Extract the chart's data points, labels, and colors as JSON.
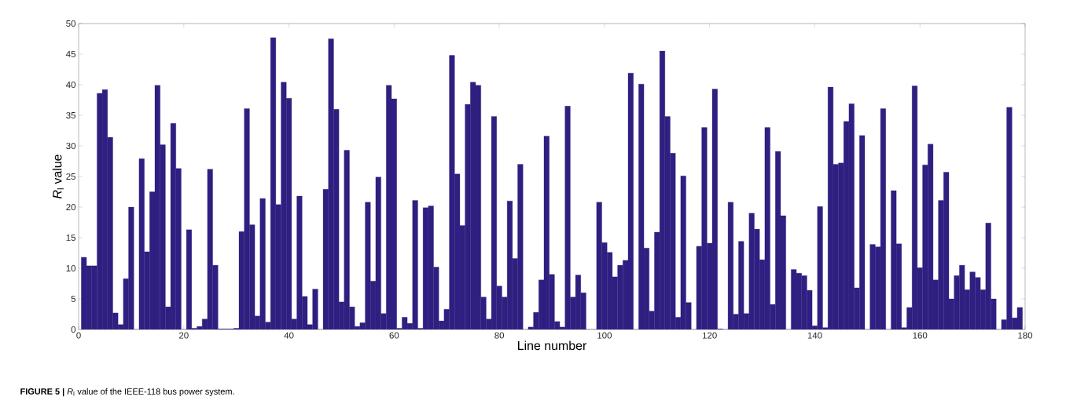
{
  "chart_data": {
    "type": "bar",
    "xlabel": "Line number",
    "ylabel": "*R*$_{l}$ value",
    "annotations": [
      "**FIGURE 5 |** *R*$_{l}$ value of the IEEE-118 bus power system."
    ],
    "x": [
      1,
      2,
      3,
      4,
      5,
      6,
      7,
      8,
      9,
      10,
      11,
      12,
      13,
      14,
      15,
      16,
      17,
      18,
      19,
      20,
      21,
      22,
      23,
      24,
      25,
      26,
      27,
      28,
      29,
      30,
      31,
      32,
      33,
      34,
      35,
      36,
      37,
      38,
      39,
      40,
      41,
      42,
      43,
      44,
      45,
      46,
      47,
      48,
      49,
      50,
      51,
      52,
      53,
      54,
      55,
      56,
      57,
      58,
      59,
      60,
      61,
      62,
      63,
      64,
      65,
      66,
      67,
      68,
      69,
      70,
      71,
      72,
      73,
      74,
      75,
      76,
      77,
      78,
      79,
      80,
      81,
      82,
      83,
      84,
      85,
      86,
      87,
      88,
      89,
      90,
      91,
      92,
      93,
      94,
      95,
      96,
      97,
      98,
      99,
      100,
      101,
      102,
      103,
      104,
      105,
      106,
      107,
      108,
      109,
      110,
      111,
      112,
      113,
      114,
      115,
      116,
      117,
      118,
      119,
      120,
      121,
      122,
      123,
      124,
      125,
      126,
      127,
      128,
      129,
      130,
      131,
      132,
      133,
      134,
      135,
      136,
      137,
      138,
      139,
      140,
      141,
      142,
      143,
      144,
      145,
      146,
      147,
      148,
      149,
      150,
      151,
      152,
      153,
      154,
      155,
      156,
      157,
      158,
      159,
      160,
      161,
      162,
      163,
      164,
      165,
      166,
      167,
      168,
      169,
      170,
      171,
      172,
      173,
      174,
      175,
      176,
      177,
      178,
      179
    ],
    "values": [
      11.8,
      10.4,
      10.4,
      38.6,
      39.2,
      31.4,
      2.7,
      0.8,
      8.3,
      20.0,
      0,
      27.9,
      12.7,
      22.5,
      39.9,
      30.2,
      3.7,
      33.7,
      26.3,
      0,
      16.3,
      0.2,
      0.5,
      1.7,
      26.2,
      10.5,
      0.1,
      0.1,
      0.1,
      0.2,
      16.0,
      36.1,
      17.1,
      2.2,
      21.4,
      1.2,
      47.7,
      20.4,
      40.4,
      37.8,
      1.7,
      21.8,
      5.4,
      0.8,
      6.6,
      0,
      22.9,
      47.5,
      36.0,
      4.5,
      29.3,
      3.7,
      0.5,
      1.1,
      20.8,
      7.9,
      24.9,
      2.6,
      39.9,
      37.7,
      0.2,
      2.0,
      1.0,
      21.1,
      0.2,
      19.9,
      20.2,
      10.2,
      1.4,
      3.3,
      44.8,
      25.4,
      17.0,
      36.8,
      40.4,
      39.9,
      5.3,
      1.7,
      34.8,
      7.1,
      5.3,
      21.0,
      11.6,
      27.0,
      0,
      0.4,
      2.8,
      8.1,
      31.6,
      9.0,
      1.3,
      0.4,
      36.5,
      5.3,
      8.9,
      6.0,
      0,
      0,
      20.8,
      14.2,
      12.6,
      8.6,
      10.5,
      11.3,
      41.9,
      0,
      40.1,
      13.3,
      3.0,
      15.9,
      45.5,
      34.8,
      28.8,
      2.0,
      25.1,
      4.4,
      0,
      13.6,
      33.0,
      14.1,
      39.3,
      0.1,
      0,
      20.8,
      2.5,
      14.4,
      2.6,
      19.0,
      16.4,
      11.4,
      33.0,
      4.1,
      29.1,
      18.6,
      0,
      9.8,
      9.2,
      8.8,
      6.4,
      0.6,
      20.1,
      0.3,
      39.6,
      27.0,
      27.2,
      34.0,
      36.9,
      6.8,
      31.7,
      0,
      13.9,
      13.5,
      36.1,
      0,
      22.7,
      14.0,
      0.3,
      3.6,
      39.8,
      10.1,
      26.9,
      30.3,
      8.1,
      21.1,
      25.7,
      5.0,
      8.8,
      10.5,
      6.5,
      9.4,
      8.5,
      6.5,
      17.4,
      5.0,
      0,
      1.6,
      36.3,
      1.9,
      3.6
    ],
    "color": "#2e1f80",
    "xlim": [
      0,
      180
    ],
    "xticks": [
      0,
      20,
      40,
      60,
      80,
      100,
      120,
      140,
      160,
      180
    ],
    "ylim": [
      0,
      50
    ],
    "yticks": [
      0,
      5,
      10,
      15,
      20,
      25,
      30,
      35,
      40,
      45,
      50
    ],
    "grid": false
  }
}
